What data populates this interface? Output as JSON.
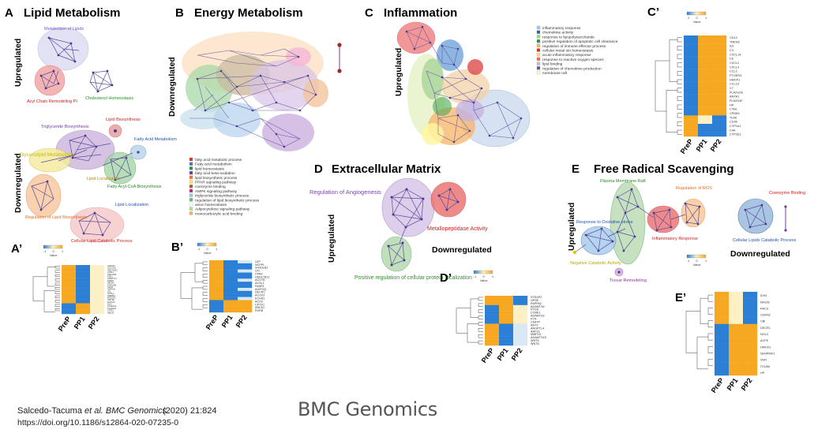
{
  "colors": {
    "edge": "#5b4a9b",
    "node": "#4a3c8c",
    "heat_blue": "#2b7fd4",
    "heat_mid": "#d8e8f4",
    "heat_light": "#fdf0c4",
    "heat_orange": "#f7a823"
  },
  "panels": {
    "A": {
      "letter": "A",
      "title": "Lipid Metabolism",
      "up_label": "Upregulated",
      "down_label": "Downregulated",
      "clusters": {
        "metabolism_of_lipids": "Metabolism of Lipids",
        "acyl_chain": "Acyl Chain Remodeling PI",
        "cholesterol": "Cholesterol Homeostasis",
        "triglyceride": "Triglyceride Biosynthesis",
        "lipid_biosynthesis": "Lipid Biosynthesis",
        "fatty_acid_metabolism": "Fatty Acid Metabolism",
        "glycerolipid": "Glycerolipid Metabolism",
        "lipid_localization": "Lipid Localization",
        "fatty_acyl_coa": "Fatty Acyl-CoA Biosynthesis",
        "regulation_lipid_biosynthesis": "Regulation of Lipid Biosynthesis",
        "lipid_localization2": "Lipid Localization",
        "cellular_lipid_catabolic": "Cellular Lipid Catabolic Process"
      }
    },
    "B": {
      "letter": "B",
      "title": "Energy Metabolism",
      "down_label": "Downregulated",
      "legend": [
        "fatty acid metabolic process",
        "Fatty acid metabolism",
        "lipid homeostasis",
        "fatty acid beta-oxidation",
        "lipid biosynthetic process",
        "PPAR signaling pathway",
        "coenzyme binding",
        "AMPK signaling pathway",
        "triglyceride biosynthetic process",
        "regulation of lipid biosynthetic process",
        "anion homeostasis",
        "Adipocytokine signaling pathway",
        "monocarboxylic acid binding"
      ],
      "legend_colors": [
        "#d73027",
        "#4575b4",
        "#1a9850",
        "#7b3294",
        "#f46d43",
        "#ffe066",
        "#a6611a",
        "#c51b7d",
        "#9ecae1",
        "#66bd63",
        "#ffffff",
        "#b2df8a",
        "#fdae61"
      ]
    },
    "C": {
      "letter": "C",
      "title": "Inflammation",
      "up_label": "Upregulated",
      "legend": [
        "inflammatory response",
        "chemokine activity",
        "response to lipopolysaccharide",
        "positive regulation of apoptotic cell clearance",
        "regulation of immune effector process",
        "cellular metal ion homeostasis",
        "acute inflammatory response",
        "response to reactive oxygen species",
        "lipid binding",
        "regulation of chemokine production",
        "membrane raft"
      ],
      "legend_colors": [
        "#9ecae1",
        "#2166ac",
        "#a6d96a",
        "#1a9850",
        "#fdae61",
        "#d73027",
        "#fee08b",
        "#f46d43",
        "#bcbddc",
        "#6a51a3",
        "#ffffbf"
      ]
    },
    "D": {
      "letter": "D",
      "title": "Extracellular Matrix",
      "up_label": "Upregulated",
      "down_label": "Downregulated",
      "angiogenesis": "Regulation of Angiogenesis",
      "metallopeptidase": "Metallopeptidase Activity",
      "positive_regulation": "Positive regulation of cellular protein localization"
    },
    "E": {
      "letter": "E",
      "title": "Free Radical Scavenging",
      "up_label": "Upregulated",
      "down_label": "Downregulated",
      "plasma_membrane_raft": "Plasma Membrane Raft",
      "regulation_ros": "Regulation of ROS",
      "coenzyme_binding": "Coenzyme Binding",
      "response_oxidative": "Response to Oxidative stress",
      "inflammatory_response": "Inflammatory Response",
      "cellular_lipids": "Cellular Lipids Catabolic Process",
      "negative_catabolic": "Negative Catabolic Activity",
      "tissue_remodeling": "Tissue Remodeling"
    }
  },
  "heatmaps": {
    "A_prime": {
      "letter": "A’",
      "columns": [
        "PreP",
        "PP1",
        "PP2"
      ],
      "value_label": "Value",
      "scale_ticks": [
        "-1",
        "0",
        "1"
      ],
      "genes": [
        "AGPAT2",
        "SLC27A2",
        "HSD17B12",
        "ACSL1",
        "HSD17B4",
        "PCK1",
        "ANGPTL4",
        "FABP4",
        "DECR1",
        "SH3GLB1",
        "ACO2",
        "ADIPOQ",
        "LPL",
        "CPT1A",
        "SREBF2",
        "MOGAT2",
        "ADH1B",
        "ELOVL6",
        "ACLY",
        "PLA2G2A",
        "PLA2G4F",
        "CPT1C",
        "ABCA1"
      ]
    },
    "B_prime": {
      "letter": "B’",
      "columns": [
        "PreP",
        "PP1",
        "PP2"
      ],
      "value_label": "Value",
      "scale_ticks": [
        "-1",
        "0",
        "1"
      ],
      "genes": [
        "LEP",
        "NCPPL",
        "SH3GLB1",
        "LPL",
        "CPA4",
        "HSD17B12",
        "ACOT8",
        "ACSL1",
        "FABP4",
        "ADIPOQ",
        "DECR1",
        "ACOX2",
        "ECHS1",
        "ACO2",
        "CPT1C",
        "ABCA1",
        "RXRB"
      ]
    },
    "C_prime": {
      "letter": "C’",
      "columns": [
        "PreP",
        "PP1",
        "PP2"
      ],
      "value_label": "Value",
      "scale_ticks": [
        "-1",
        "0",
        "1"
      ],
      "genes": [
        "CD14",
        "TREM2",
        "IL6",
        "C3",
        "CXCL14",
        "C6",
        "CXCL2",
        "CXCL3",
        "CCL2",
        "PTGER4",
        "HMOX1",
        "CCL19",
        "C7",
        "PLA2G2A",
        "ANXA1",
        "PLA2G4F",
        "HP",
        "CYBL",
        "CPNE6",
        "TLR6",
        "CD36",
        "CYP1A1",
        "C4A",
        "CYP2E1"
      ]
    },
    "D_prime": {
      "letter": "D’",
      "columns": [
        "PreP",
        "PP1",
        "PP2"
      ],
      "value_label": "Value",
      "scale_ticks": [
        "-1",
        "0",
        "1"
      ],
      "genes": [
        "STEAP2",
        "HPSE",
        "PAPPA2",
        "ADAMTS4",
        "PTGS",
        "CCBE1",
        "ADAMTS2",
        "FYN",
        "CD47P",
        "ANT2",
        "ANGPTL4",
        "ARF15",
        "MMP15",
        "ADAMTS15",
        "WNT6",
        "WNT8"
      ]
    },
    "E_prime": {
      "letter": "E’",
      "columns": [
        "PreP",
        "PP1",
        "PP2"
      ],
      "value_label": "Value",
      "scale_ticks": [
        "-1",
        "0",
        "1"
      ],
      "genes": [
        "IDH1",
        "MACIE",
        "RAC3",
        "CDKN2",
        "CBI",
        "DECR1",
        "NOL3",
        "ACP5",
        "HMOX1",
        "SERPINF1",
        "VDR",
        "ITGAM",
        "HP"
      ]
    }
  },
  "footer": {
    "citation": "Salcedo-Tacuma",
    "citation_etal": "et al.",
    "journal": "BMC Genomics",
    "year": "(2020) 21:824",
    "doi": "https://doi.org/10.1186/s12864-020-07235-0",
    "brand": "BMC Genomics"
  }
}
